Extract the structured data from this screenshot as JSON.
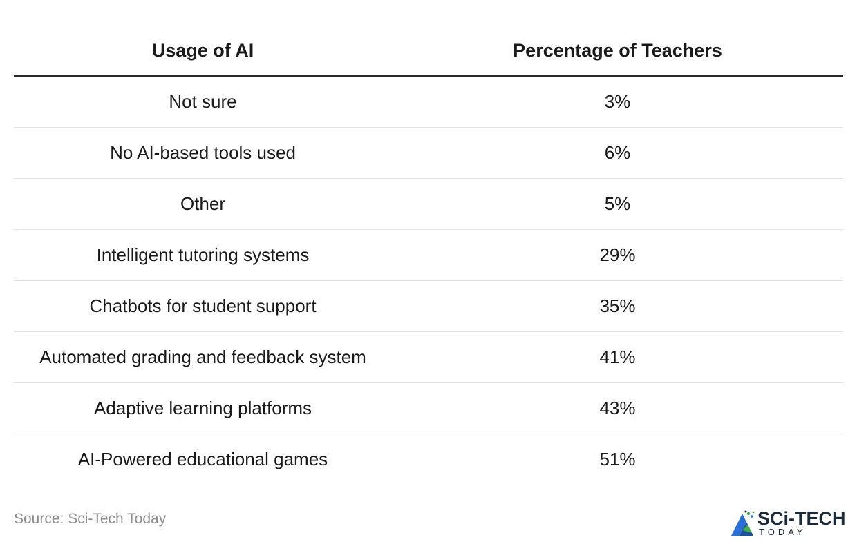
{
  "chart_data": {
    "type": "table",
    "columns": [
      "Usage of AI",
      "Percentage of Teachers"
    ],
    "rows": [
      {
        "label": "Not sure",
        "value": "3%"
      },
      {
        "label": "No AI-based tools used",
        "value": "6%"
      },
      {
        "label": "Other",
        "value": "5%"
      },
      {
        "label": "Intelligent tutoring systems",
        "value": "29%"
      },
      {
        "label": "Chatbots for student support",
        "value": "35%"
      },
      {
        "label": "Automated grading and feedback system",
        "value": "41%"
      },
      {
        "label": "Adaptive learning platforms",
        "value": "43%"
      },
      {
        "label": "AI-Powered educational games",
        "value": "51%"
      }
    ]
  },
  "footer": {
    "source": "Source: Sci-Tech Today",
    "logo_title": "SCi-TECH",
    "logo_subtitle": "TODAY",
    "logo_icon": "sci-tech-logo-icon"
  },
  "colors": {
    "header_rule": "#2b2b2b",
    "row_divider": "#e2e2e2",
    "logo_blue": "#2a6fd6",
    "logo_green": "#3fae49",
    "logo_dark": "#1c2b3a"
  }
}
